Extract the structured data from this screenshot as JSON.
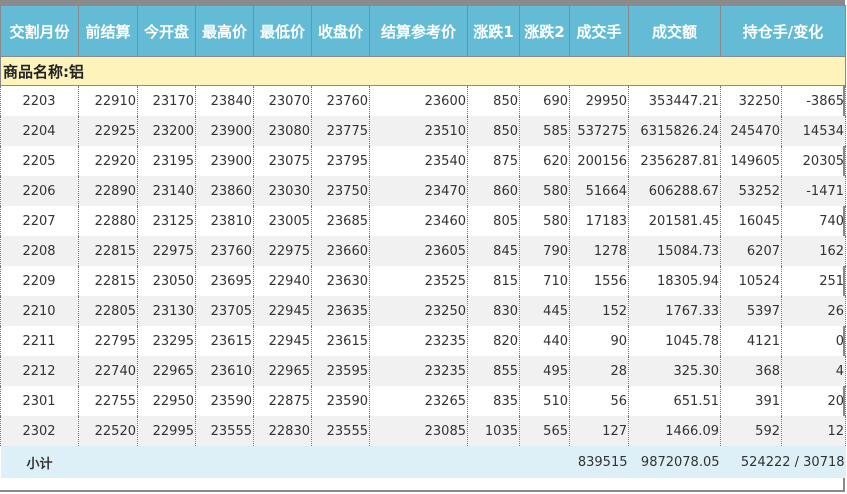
{
  "headers": [
    "交割月份",
    "前结算",
    "今开盘",
    "最高价",
    "最低价",
    "收盘价",
    "结算参考价",
    "涨跌1",
    "涨跌2",
    "成交手",
    "成交额",
    "持仓手/变化"
  ],
  "product_label": "商品名称:铝",
  "rows": [
    [
      "2203",
      "22910",
      "23170",
      "23840",
      "23070",
      "23760",
      "23600",
      "850",
      "690",
      "29950",
      "353447.21",
      "32250",
      "-3865"
    ],
    [
      "2204",
      "22925",
      "23200",
      "23900",
      "23080",
      "23775",
      "23510",
      "850",
      "585",
      "537275",
      "6315826.24",
      "245470",
      "14534"
    ],
    [
      "2205",
      "22920",
      "23195",
      "23900",
      "23075",
      "23795",
      "23540",
      "875",
      "620",
      "200156",
      "2356287.81",
      "149605",
      "20305"
    ],
    [
      "2206",
      "22890",
      "23140",
      "23860",
      "23030",
      "23750",
      "23470",
      "860",
      "580",
      "51664",
      "606288.67",
      "53252",
      "-1471"
    ],
    [
      "2207",
      "22880",
      "23125",
      "23810",
      "23005",
      "23685",
      "23460",
      "805",
      "580",
      "17183",
      "201581.45",
      "16045",
      "740"
    ],
    [
      "2208",
      "22815",
      "22975",
      "23760",
      "22975",
      "23660",
      "23605",
      "845",
      "790",
      "1278",
      "15084.73",
      "6207",
      "162"
    ],
    [
      "2209",
      "22815",
      "23050",
      "23695",
      "22940",
      "23630",
      "23525",
      "815",
      "710",
      "1556",
      "18305.94",
      "10524",
      "251"
    ],
    [
      "2210",
      "22805",
      "23130",
      "23705",
      "22945",
      "23635",
      "23250",
      "830",
      "445",
      "152",
      "1767.33",
      "5397",
      "26"
    ],
    [
      "2211",
      "22795",
      "23295",
      "23615",
      "22945",
      "23615",
      "23235",
      "820",
      "440",
      "90",
      "1045.78",
      "4121",
      "0"
    ],
    [
      "2212",
      "22740",
      "22965",
      "23610",
      "22965",
      "23595",
      "23235",
      "855",
      "495",
      "28",
      "325.30",
      "368",
      "4"
    ],
    [
      "2301",
      "22755",
      "22950",
      "23590",
      "22875",
      "23590",
      "23265",
      "835",
      "510",
      "56",
      "651.51",
      "391",
      "20"
    ],
    [
      "2302",
      "22520",
      "22995",
      "23555",
      "22830",
      "23555",
      "23085",
      "1035",
      "565",
      "127",
      "1466.09",
      "592",
      "12"
    ]
  ],
  "footer": {
    "label": "小计",
    "volume": "839515",
    "turnover": "9872078.05",
    "open_interest": "524222 / 30718"
  }
}
